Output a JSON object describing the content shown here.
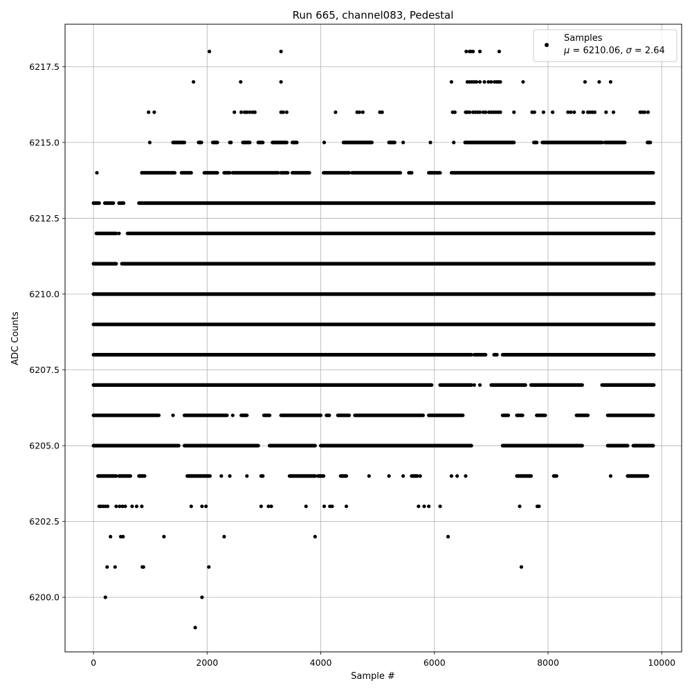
{
  "chart_data": {
    "type": "scatter",
    "title": "Run 665, channel083, Pedestal",
    "xlabel": "Sample #",
    "ylabel": "ADC Counts",
    "xlim": [
      -500,
      10350
    ],
    "ylim": [
      6198.2,
      6218.9
    ],
    "xticks": [
      0,
      2000,
      4000,
      6000,
      8000,
      10000
    ],
    "xtick_labels": [
      "0",
      "2000",
      "4000",
      "6000",
      "8000",
      "10000"
    ],
    "yticks": [
      6200.0,
      6202.5,
      6205.0,
      6207.5,
      6210.0,
      6212.5,
      6215.0,
      6217.5
    ],
    "ytick_labels": [
      "6200.0",
      "6202.5",
      "6205.0",
      "6207.5",
      "6210.0",
      "6212.5",
      "6215.0",
      "6217.5"
    ],
    "grid": true,
    "legend_position": "top-right",
    "marker_color": "#000000",
    "legend": {
      "series_name": "Samples",
      "stats_prefix_mu": "μ",
      "stats_mid": " = 6210.06, ",
      "stats_prefix_sigma": "σ",
      "stats_suffix": " = 2.64"
    },
    "series": [
      {
        "name": "Samples",
        "sample_count": 9850,
        "levels": [
          {
            "y": 6218,
            "x": [
              2040,
              3300,
              6560,
              6620,
              6640,
              6680,
              6800,
              7140
            ]
          },
          {
            "y": 6217,
            "x": [
              1760,
              2590,
              3300,
              6300,
              6580,
              6620,
              6660,
              6700,
              6740,
              6800,
              6880,
              6950,
              7000,
              7060,
              7100,
              7130,
              7160,
              7560,
              8650,
              8900,
              9100
            ]
          },
          {
            "y": 6216,
            "x": [
              970,
              1070,
              2480,
              2600,
              2660,
              2700,
              2750,
              2800,
              2840,
              3300,
              3340,
              3400,
              4260,
              4640,
              4680,
              4740,
              5040,
              5080,
              6320,
              6360,
              6550,
              6580,
              6620,
              6680,
              6720,
              6760,
              6800,
              6860,
              6900,
              6960,
              7000,
              7040,
              7080,
              7120,
              7160,
              7400,
              7720,
              7760,
              7920,
              8080,
              8350,
              8400,
              8460,
              8620,
              8700,
              8740,
              8780,
              8820,
              9020,
              9150,
              9620,
              9660,
              9700,
              9760
            ]
          }
        ],
        "bands": [
          {
            "y": 6215,
            "ranges": [
              [
                990,
                990
              ],
              [
                1400,
                1600
              ],
              [
                1850,
                1900
              ],
              [
                2100,
                2180
              ],
              [
                2400,
                2420
              ],
              [
                2630,
                2750
              ],
              [
                2900,
                2980
              ],
              [
                3150,
                3400
              ],
              [
                3500,
                3580
              ],
              [
                4060,
                4060
              ],
              [
                4400,
                4900
              ],
              [
                5200,
                5300
              ],
              [
                5450,
                5450
              ],
              [
                5930,
                5930
              ],
              [
                6340,
                6340
              ],
              [
                6540,
                7400
              ],
              [
                7750,
                7800
              ],
              [
                7900,
                8950
              ],
              [
                9000,
                9350
              ],
              [
                9750,
                9800
              ]
            ]
          },
          {
            "y": 6214,
            "ranges": [
              [
                60,
                60
              ],
              [
                850,
                1430
              ],
              [
                1550,
                1720
              ],
              [
                1950,
                2180
              ],
              [
                2300,
                2400
              ],
              [
                2450,
                3250
              ],
              [
                3300,
                3420
              ],
              [
                3500,
                3800
              ],
              [
                4050,
                4500
              ],
              [
                4550,
                5400
              ],
              [
                5550,
                5600
              ],
              [
                5900,
                6100
              ],
              [
                6300,
                9850
              ]
            ]
          },
          {
            "y": 6213,
            "ranges": [
              [
                0,
                100
              ],
              [
                200,
                350
              ],
              [
                450,
                530
              ],
              [
                800,
                9860
              ]
            ]
          },
          {
            "y": 6212,
            "ranges": [
              [
                50,
                400
              ],
              [
                450,
                450
              ],
              [
                600,
                9860
              ]
            ]
          },
          {
            "y": 6211,
            "ranges": [
              [
                0,
                400
              ],
              [
                500,
                9860
              ]
            ]
          },
          {
            "y": 6210,
            "ranges": [
              [
                0,
                9860
              ]
            ]
          },
          {
            "y": 6209,
            "ranges": [
              [
                0,
                9860
              ]
            ]
          },
          {
            "y": 6208,
            "ranges": [
              [
                0,
                6650
              ],
              [
                6700,
                6900
              ],
              [
                7050,
                7100
              ],
              [
                7200,
                9860
              ]
            ]
          },
          {
            "y": 6207,
            "ranges": [
              [
                0,
                5950
              ],
              [
                6100,
                6650
              ],
              [
                6700,
                6700
              ],
              [
                6800,
                6800
              ],
              [
                7000,
                7600
              ],
              [
                7700,
                8600
              ],
              [
                8950,
                9860
              ]
            ]
          },
          {
            "y": 6206,
            "ranges": [
              [
                0,
                1150
              ],
              [
                1400,
                1400
              ],
              [
                1600,
                2350
              ],
              [
                2450,
                2450
              ],
              [
                2600,
                2700
              ],
              [
                3000,
                3100
              ],
              [
                3300,
                4000
              ],
              [
                4100,
                4150
              ],
              [
                4300,
                4500
              ],
              [
                4600,
                5800
              ],
              [
                5900,
                6500
              ],
              [
                7200,
                7300
              ],
              [
                7450,
                7550
              ],
              [
                7800,
                7950
              ],
              [
                8500,
                8700
              ],
              [
                9050,
                9850
              ]
            ]
          },
          {
            "y": 6205,
            "ranges": [
              [
                0,
                1500
              ],
              [
                1600,
                2900
              ],
              [
                3100,
                3900
              ],
              [
                4000,
                6650
              ],
              [
                7200,
                8600
              ],
              [
                9050,
                9400
              ],
              [
                9500,
                9850
              ]
            ]
          },
          {
            "y": 6204,
            "ranges": [
              [
                80,
                400
              ],
              [
                450,
                650
              ],
              [
                800,
                900
              ],
              [
                1650,
                2050
              ],
              [
                2250,
                2250
              ],
              [
                2400,
                2400
              ],
              [
                2700,
                2700
              ],
              [
                2950,
                2980
              ],
              [
                3450,
                3900
              ],
              [
                3950,
                4050
              ],
              [
                4350,
                4450
              ],
              [
                4850,
                4850
              ],
              [
                5200,
                5200
              ],
              [
                5450,
                5450
              ],
              [
                5600,
                5700
              ],
              [
                5750,
                5750
              ],
              [
                6300,
                6300
              ],
              [
                6400,
                6400
              ],
              [
                6550,
                6550
              ],
              [
                7450,
                7700
              ],
              [
                8100,
                8150
              ],
              [
                9100,
                9100
              ],
              [
                9400,
                9750
              ]
            ]
          }
        ],
        "points": [
          {
            "x": 100,
            "y": 6203
          },
          {
            "x": 130,
            "y": 6203
          },
          {
            "x": 170,
            "y": 6203
          },
          {
            "x": 210,
            "y": 6203
          },
          {
            "x": 250,
            "y": 6203
          },
          {
            "x": 400,
            "y": 6203
          },
          {
            "x": 460,
            "y": 6203
          },
          {
            "x": 510,
            "y": 6203
          },
          {
            "x": 560,
            "y": 6203
          },
          {
            "x": 680,
            "y": 6203
          },
          {
            "x": 760,
            "y": 6203
          },
          {
            "x": 850,
            "y": 6203
          },
          {
            "x": 1720,
            "y": 6203
          },
          {
            "x": 1910,
            "y": 6203
          },
          {
            "x": 1980,
            "y": 6203
          },
          {
            "x": 2950,
            "y": 6203
          },
          {
            "x": 3080,
            "y": 6203
          },
          {
            "x": 3130,
            "y": 6203
          },
          {
            "x": 3740,
            "y": 6203
          },
          {
            "x": 4060,
            "y": 6203
          },
          {
            "x": 4160,
            "y": 6203
          },
          {
            "x": 4200,
            "y": 6203
          },
          {
            "x": 4450,
            "y": 6203
          },
          {
            "x": 5720,
            "y": 6203
          },
          {
            "x": 5820,
            "y": 6203
          },
          {
            "x": 5900,
            "y": 6203
          },
          {
            "x": 6100,
            "y": 6203
          },
          {
            "x": 7500,
            "y": 6203
          },
          {
            "x": 7810,
            "y": 6203
          },
          {
            "x": 7840,
            "y": 6203
          },
          {
            "x": 300,
            "y": 6202
          },
          {
            "x": 480,
            "y": 6202
          },
          {
            "x": 520,
            "y": 6202
          },
          {
            "x": 1240,
            "y": 6202
          },
          {
            "x": 2300,
            "y": 6202
          },
          {
            "x": 3900,
            "y": 6202
          },
          {
            "x": 6240,
            "y": 6202
          },
          {
            "x": 240,
            "y": 6201
          },
          {
            "x": 380,
            "y": 6201
          },
          {
            "x": 860,
            "y": 6201
          },
          {
            "x": 880,
            "y": 6201
          },
          {
            "x": 2030,
            "y": 6201
          },
          {
            "x": 7530,
            "y": 6201
          },
          {
            "x": 210,
            "y": 6200
          },
          {
            "x": 1910,
            "y": 6200
          },
          {
            "x": 1790,
            "y": 6199
          }
        ]
      }
    ]
  }
}
